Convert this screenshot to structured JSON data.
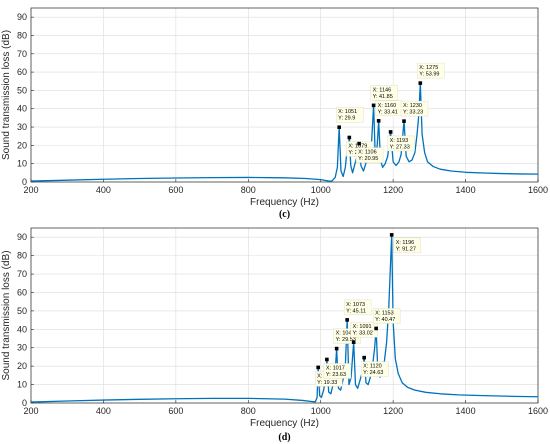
{
  "chart_data": [
    {
      "type": "line",
      "panel_label": "(c)",
      "xlabel": "Frequency (Hz)",
      "ylabel": "Sound transmission loss (dB)",
      "xlim": [
        200,
        1600
      ],
      "ylim": [
        0,
        95
      ],
      "xticks": [
        200,
        400,
        600,
        800,
        1000,
        1200,
        1400,
        1600
      ],
      "yticks": [
        0,
        10,
        20,
        30,
        40,
        50,
        60,
        70,
        80,
        90
      ],
      "grid": true,
      "line_color": "#0072BD",
      "series": [
        {
          "x": [
            200,
            300,
            400,
            500,
            600,
            700,
            800,
            900,
            960,
            1000,
            1020,
            1030,
            1040,
            1046,
            1051,
            1056,
            1062,
            1068,
            1072,
            1076,
            1079,
            1083,
            1088,
            1096,
            1102,
            1106,
            1111,
            1118,
            1126,
            1133,
            1140,
            1146,
            1151,
            1156,
            1160,
            1165,
            1171,
            1178,
            1185,
            1193,
            1200,
            1208,
            1216,
            1222,
            1230,
            1236,
            1244,
            1252,
            1260,
            1266,
            1271,
            1275,
            1280,
            1287,
            1295,
            1310,
            1330,
            1360,
            1400,
            1450,
            1500,
            1550,
            1600
          ],
          "y": [
            0.5,
            1.0,
            1.5,
            1.9,
            2.2,
            2.4,
            2.5,
            2.3,
            1.9,
            1.3,
            0.6,
            0.4,
            2.5,
            8,
            29.9,
            6,
            3,
            8,
            16,
            18,
            24.3,
            9,
            5,
            11,
            15,
            20.95,
            9,
            6,
            11,
            16,
            20,
            41.85,
            12,
            20,
            33.41,
            12,
            8,
            10,
            14,
            27.33,
            11,
            9,
            11,
            15,
            33.23,
            14,
            11,
            12,
            16,
            26,
            37,
            53.99,
            26,
            16,
            11,
            8.5,
            7,
            6,
            5.3,
            4.9,
            4.6,
            4.4,
            4.3
          ]
        }
      ],
      "datatips": [
        {
          "x_label": "X: 1051",
          "y_label": "Y: 29.9",
          "x": 1051,
          "y": 29.9,
          "side": "above"
        },
        {
          "x_label": "X: 1079",
          "y_label": "Y: 24.3",
          "x": 1079,
          "y": 24.3,
          "side": "below"
        },
        {
          "x_label": "X: 1106",
          "y_label": "Y: 20.95",
          "x": 1106,
          "y": 20.95,
          "side": "below"
        },
        {
          "x_label": "X: 1146",
          "y_label": "Y: 41.85",
          "x": 1146,
          "y": 41.85,
          "side": "above"
        },
        {
          "x_label": "X: 1160",
          "y_label": "Y: 33.41",
          "x": 1160,
          "y": 33.41,
          "side": "above"
        },
        {
          "x_label": "X: 1193",
          "y_label": "Y: 27.33",
          "x": 1193,
          "y": 27.33,
          "side": "below"
        },
        {
          "x_label": "X: 1230",
          "y_label": "Y: 33.23",
          "x": 1230,
          "y": 33.23,
          "side": "above"
        },
        {
          "x_label": "X: 1275",
          "y_label": "Y: 53.99",
          "x": 1275,
          "y": 53.99,
          "side": "above"
        }
      ]
    },
    {
      "type": "line",
      "panel_label": "(d)",
      "xlabel": "Frequency (Hz)",
      "ylabel": "Sound transmission loss (dB)",
      "xlim": [
        200,
        1600
      ],
      "ylim": [
        0,
        95
      ],
      "xticks": [
        200,
        400,
        600,
        800,
        1000,
        1200,
        1400,
        1600
      ],
      "yticks": [
        0,
        10,
        20,
        30,
        40,
        50,
        60,
        70,
        80,
        90
      ],
      "grid": true,
      "line_color": "#0072BD",
      "series": [
        {
          "x": [
            200,
            300,
            400,
            500,
            600,
            700,
            800,
            900,
            950,
            975,
            985,
            990,
            993,
            997,
            1002,
            1008,
            1014,
            1017,
            1022,
            1028,
            1034,
            1040,
            1044,
            1049,
            1055,
            1062,
            1068,
            1073,
            1078,
            1084,
            1088,
            1091,
            1096,
            1102,
            1108,
            1115,
            1120,
            1125,
            1131,
            1137,
            1143,
            1149,
            1153,
            1158,
            1164,
            1170,
            1176,
            1182,
            1188,
            1192,
            1196,
            1200,
            1206,
            1214,
            1225,
            1240,
            1260,
            1290,
            1330,
            1380,
            1450,
            1530,
            1600
          ],
          "y": [
            0.5,
            1.1,
            1.6,
            2.0,
            2.3,
            2.5,
            2.5,
            2.1,
            1.4,
            0.8,
            0.6,
            3,
            19.33,
            4,
            3,
            7,
            14,
            23.63,
            6,
            5,
            10,
            17,
            29.53,
            8,
            7,
            13,
            20,
            45.11,
            10,
            14,
            25,
            33.02,
            10,
            8,
            12,
            17,
            24.63,
            11,
            10,
            14,
            20,
            30,
            40.47,
            16,
            14,
            17,
            23,
            33,
            52,
            72,
            91.27,
            44,
            24,
            16,
            11,
            8.5,
            7,
            5.8,
            5,
            4.4,
            4.0,
            3.6,
            3.4
          ]
        }
      ],
      "datatips": [
        {
          "x_label": "X: 993",
          "y_label": "Y: 19.33",
          "x": 993,
          "y": 19.33,
          "side": "below"
        },
        {
          "x_label": "X: 1044",
          "y_label": "Y: 29.53",
          "x": 1044,
          "y": 29.53,
          "side": "above"
        },
        {
          "x_label": "X: 1017",
          "y_label": "Y: 23.63",
          "x": 1017,
          "y": 23.63,
          "side": "below"
        },
        {
          "x_label": "X: 1073",
          "y_label": "Y: 45.11",
          "x": 1073,
          "y": 45.11,
          "side": "above"
        },
        {
          "x_label": "X: 1091",
          "y_label": "Y: 33.02",
          "x": 1091,
          "y": 33.02,
          "side": "above"
        },
        {
          "x_label": "X: 1120",
          "y_label": "Y: 24.63",
          "x": 1120,
          "y": 24.63,
          "side": "below"
        },
        {
          "x_label": "X: 1153",
          "y_label": "Y: 40.47",
          "x": 1153,
          "y": 40.47,
          "side": "above"
        },
        {
          "x_label": "X: 1196",
          "y_label": "Y: 91.27",
          "x": 1196,
          "y": 91.27,
          "side": "below-right"
        }
      ]
    }
  ]
}
